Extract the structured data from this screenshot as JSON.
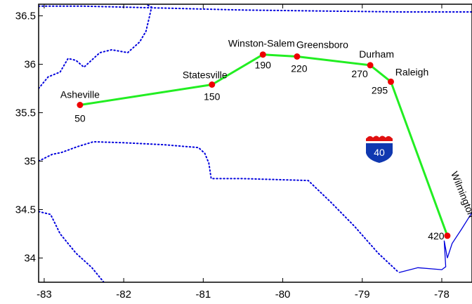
{
  "map": {
    "axes": {
      "xlim": [
        -83.07,
        -77.62
      ],
      "ylim": [
        33.75,
        36.62
      ],
      "x_ticks": [
        -83,
        -82,
        -81,
        -80,
        -79,
        -78
      ],
      "x_tick_labels": [
        "-83",
        "-82",
        "-81",
        "-80",
        "-79",
        "-78"
      ],
      "y_ticks": [
        36.5,
        36,
        35.5,
        35,
        34.5,
        34
      ],
      "y_tick_labels": [
        "36.5",
        "36",
        "35.5",
        "35",
        "34.5",
        "34"
      ],
      "frame_color": "#000000"
    },
    "route": {
      "color": "#22ee22",
      "marker_color": "#ee0000",
      "shield_number": "40",
      "shield_lon": -78.6,
      "shield_lat": 35.2
    },
    "cities": [
      {
        "name": "Asheville",
        "mile": "50",
        "lon": -82.55,
        "lat": 35.58
      },
      {
        "name": "Statesville",
        "mile": "150",
        "lon": -80.89,
        "lat": 35.79
      },
      {
        "name": "Winston-Salem",
        "mile": "190",
        "lon": -80.25,
        "lat": 36.1
      },
      {
        "name": "Greensboro",
        "mile": "220",
        "lon": -79.82,
        "lat": 36.08
      },
      {
        "name": "Durham",
        "mile": "270",
        "lon": -78.9,
        "lat": 35.99
      },
      {
        "name": "Raleigh",
        "mile": "295",
        "lon": -78.64,
        "lat": 35.82
      },
      {
        "name": "Wilmington",
        "mile": "420",
        "lon": -77.93,
        "lat": 34.23
      }
    ],
    "borders": {
      "color": "#0000dd",
      "virginia": [
        [
          -83.07,
          36.6
        ],
        [
          -82.5,
          36.6
        ],
        [
          -81.5,
          36.58
        ],
        [
          -80.5,
          36.56
        ],
        [
          -79.5,
          36.55
        ],
        [
          -78.5,
          36.54
        ],
        [
          -77.62,
          36.54
        ]
      ],
      "tennessee": [
        [
          -83.07,
          35.75
        ],
        [
          -82.95,
          35.87
        ],
        [
          -82.8,
          35.92
        ],
        [
          -82.7,
          36.06
        ],
        [
          -82.6,
          36.04
        ],
        [
          -82.5,
          35.97
        ],
        [
          -82.3,
          36.12
        ],
        [
          -82.15,
          36.15
        ],
        [
          -81.95,
          36.12
        ],
        [
          -81.8,
          36.23
        ],
        [
          -81.72,
          36.34
        ],
        [
          -81.68,
          36.48
        ],
        [
          -81.65,
          36.59
        ],
        [
          -81.7,
          36.61
        ]
      ],
      "georgia_sc": [
        [
          -83.07,
          35.0
        ],
        [
          -82.9,
          35.07
        ],
        [
          -82.78,
          35.09
        ],
        [
          -82.58,
          35.15
        ],
        [
          -82.38,
          35.2
        ],
        [
          -82.0,
          35.19
        ],
        [
          -81.5,
          35.17
        ],
        [
          -81.06,
          35.14
        ],
        [
          -80.98,
          35.08
        ],
        [
          -80.93,
          34.98
        ],
        [
          -80.9,
          34.82
        ],
        [
          -80.5,
          34.82
        ],
        [
          -79.68,
          34.8
        ],
        [
          -79.4,
          34.58
        ],
        [
          -79.1,
          34.33
        ],
        [
          -78.8,
          34.05
        ],
        [
          -78.54,
          33.85
        ]
      ],
      "sc_west": [
        [
          -83.07,
          34.48
        ],
        [
          -82.92,
          34.45
        ],
        [
          -82.8,
          34.25
        ],
        [
          -82.6,
          34.05
        ],
        [
          -82.4,
          33.9
        ],
        [
          -82.25,
          33.75
        ]
      ],
      "coast": [
        [
          -78.54,
          33.85
        ],
        [
          -78.3,
          33.9
        ],
        [
          -78.0,
          33.88
        ],
        [
          -77.95,
          33.91
        ],
        [
          -77.97,
          34.18
        ],
        [
          -77.93,
          34.0
        ],
        [
          -77.87,
          34.15
        ],
        [
          -77.75,
          34.3
        ],
        [
          -77.62,
          34.47
        ]
      ]
    }
  }
}
